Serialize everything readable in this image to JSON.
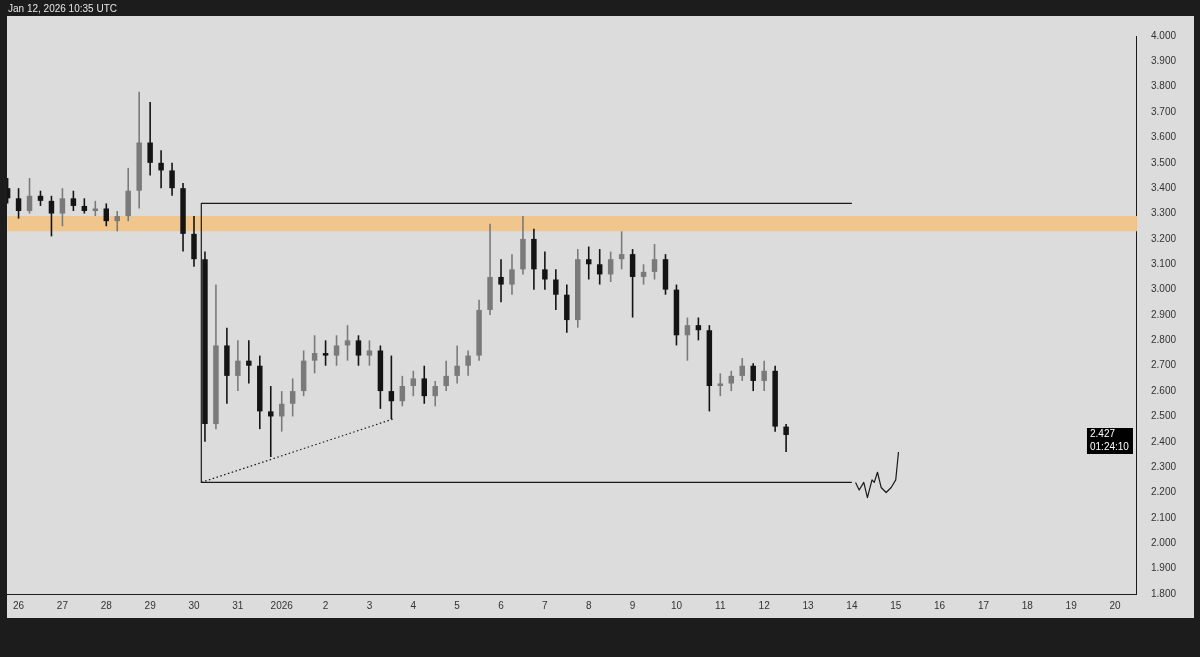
{
  "chart_data": {
    "type": "candlestick",
    "x": [
      "2025-12-25T18:00",
      "2025-12-26T00:00",
      "2025-12-26T06:00",
      "2025-12-26T12:00",
      "2025-12-26T18:00",
      "2025-12-27T00:00",
      "2025-12-27T06:00",
      "2025-12-27T12:00",
      "2025-12-27T18:00",
      "2025-12-28T00:00",
      "2025-12-28T06:00",
      "2025-12-28T12:00",
      "2025-12-28T18:00",
      "2025-12-29T00:00",
      "2025-12-29T06:00",
      "2025-12-29T12:00",
      "2025-12-29T18:00",
      "2025-12-30T00:00",
      "2025-12-30T06:00",
      "2025-12-30T12:00",
      "2025-12-30T18:00",
      "2025-12-31T00:00",
      "2025-12-31T06:00",
      "2025-12-31T12:00",
      "2025-12-31T18:00",
      "2026-01-01T00:00",
      "2026-01-01T06:00",
      "2026-01-01T12:00",
      "2026-01-01T18:00",
      "2026-01-02T00:00",
      "2026-01-02T06:00",
      "2026-01-02T12:00",
      "2026-01-02T18:00",
      "2026-01-03T00:00",
      "2026-01-03T06:00",
      "2026-01-03T12:00",
      "2026-01-03T18:00",
      "2026-01-04T00:00",
      "2026-01-04T06:00",
      "2026-01-04T12:00",
      "2026-01-04T18:00",
      "2026-01-05T00:00",
      "2026-01-05T06:00",
      "2026-01-05T12:00",
      "2026-01-05T18:00",
      "2026-01-06T00:00",
      "2026-01-06T06:00",
      "2026-01-06T12:00",
      "2026-01-06T18:00",
      "2026-01-07T00:00",
      "2026-01-07T06:00",
      "2026-01-07T12:00",
      "2026-01-07T18:00",
      "2026-01-08T00:00",
      "2026-01-08T06:00",
      "2026-01-08T12:00",
      "2026-01-08T18:00",
      "2026-01-09T00:00",
      "2026-01-09T06:00",
      "2026-01-09T12:00",
      "2026-01-09T18:00",
      "2026-01-10T00:00",
      "2026-01-10T06:00",
      "2026-01-10T12:00",
      "2026-01-10T18:00",
      "2026-01-11T00:00",
      "2026-01-11T06:00",
      "2026-01-11T12:00",
      "2026-01-11T18:00",
      "2026-01-12T00:00",
      "2026-01-12T06:00",
      "2026-01-12T12:00"
    ],
    "ohlc": [
      [
        3.4,
        3.44,
        3.34,
        3.36
      ],
      [
        3.36,
        3.4,
        3.28,
        3.31
      ],
      [
        3.31,
        3.44,
        3.3,
        3.37
      ],
      [
        3.37,
        3.39,
        3.33,
        3.35
      ],
      [
        3.35,
        3.37,
        3.21,
        3.3
      ],
      [
        3.3,
        3.4,
        3.25,
        3.36
      ],
      [
        3.36,
        3.39,
        3.31,
        3.33
      ],
      [
        3.33,
        3.36,
        3.3,
        3.31
      ],
      [
        3.31,
        3.35,
        3.29,
        3.32
      ],
      [
        3.32,
        3.34,
        3.25,
        3.27
      ],
      [
        3.27,
        3.31,
        3.23,
        3.29
      ],
      [
        3.29,
        3.48,
        3.27,
        3.39
      ],
      [
        3.39,
        3.78,
        3.32,
        3.58
      ],
      [
        3.58,
        3.74,
        3.45,
        3.5
      ],
      [
        3.5,
        3.55,
        3.4,
        3.47
      ],
      [
        3.47,
        3.5,
        3.37,
        3.4
      ],
      [
        3.4,
        3.42,
        3.15,
        3.22
      ],
      [
        3.22,
        3.29,
        3.09,
        3.12
      ],
      [
        3.12,
        3.15,
        2.4,
        2.47
      ],
      [
        2.47,
        3.02,
        2.45,
        2.78
      ],
      [
        2.78,
        2.85,
        2.55,
        2.66
      ],
      [
        2.66,
        2.8,
        2.6,
        2.72
      ],
      [
        2.72,
        2.8,
        2.63,
        2.7
      ],
      [
        2.7,
        2.74,
        2.45,
        2.52
      ],
      [
        2.52,
        2.62,
        2.34,
        2.5
      ],
      [
        2.5,
        2.6,
        2.44,
        2.55
      ],
      [
        2.55,
        2.65,
        2.5,
        2.6
      ],
      [
        2.6,
        2.76,
        2.58,
        2.72
      ],
      [
        2.72,
        2.82,
        2.67,
        2.75
      ],
      [
        2.75,
        2.8,
        2.7,
        2.74
      ],
      [
        2.74,
        2.82,
        2.7,
        2.78
      ],
      [
        2.78,
        2.86,
        2.72,
        2.8
      ],
      [
        2.8,
        2.82,
        2.7,
        2.74
      ],
      [
        2.74,
        2.8,
        2.7,
        2.76
      ],
      [
        2.76,
        2.78,
        2.53,
        2.6
      ],
      [
        2.6,
        2.74,
        2.49,
        2.56
      ],
      [
        2.56,
        2.66,
        2.54,
        2.62
      ],
      [
        2.62,
        2.68,
        2.58,
        2.65
      ],
      [
        2.65,
        2.7,
        2.55,
        2.58
      ],
      [
        2.58,
        2.64,
        2.54,
        2.62
      ],
      [
        2.62,
        2.72,
        2.6,
        2.66
      ],
      [
        2.66,
        2.78,
        2.63,
        2.7
      ],
      [
        2.7,
        2.76,
        2.66,
        2.74
      ],
      [
        2.74,
        2.96,
        2.72,
        2.92
      ],
      [
        2.92,
        3.26,
        2.9,
        3.05
      ],
      [
        3.05,
        3.12,
        2.95,
        3.02
      ],
      [
        3.02,
        3.14,
        2.98,
        3.08
      ],
      [
        3.08,
        3.29,
        3.06,
        3.2
      ],
      [
        3.2,
        3.24,
        3.0,
        3.08
      ],
      [
        3.08,
        3.15,
        3.0,
        3.04
      ],
      [
        3.04,
        3.08,
        2.92,
        2.98
      ],
      [
        2.98,
        3.02,
        2.83,
        2.88
      ],
      [
        2.88,
        3.16,
        2.85,
        3.12
      ],
      [
        3.12,
        3.17,
        3.04,
        3.1
      ],
      [
        3.1,
        3.16,
        3.02,
        3.06
      ],
      [
        3.06,
        3.15,
        3.03,
        3.12
      ],
      [
        3.12,
        3.23,
        3.08,
        3.14
      ],
      [
        3.14,
        3.16,
        2.89,
        3.05
      ],
      [
        3.05,
        3.1,
        3.02,
        3.07
      ],
      [
        3.07,
        3.18,
        3.04,
        3.12
      ],
      [
        3.12,
        3.14,
        2.98,
        3.0
      ],
      [
        3.0,
        3.02,
        2.78,
        2.82
      ],
      [
        2.82,
        2.89,
        2.72,
        2.86
      ],
      [
        2.86,
        2.89,
        2.8,
        2.84
      ],
      [
        2.84,
        2.86,
        2.52,
        2.62
      ],
      [
        2.62,
        2.67,
        2.58,
        2.63
      ],
      [
        2.63,
        2.68,
        2.6,
        2.66
      ],
      [
        2.66,
        2.73,
        2.64,
        2.7
      ],
      [
        2.7,
        2.71,
        2.6,
        2.64
      ],
      [
        2.64,
        2.72,
        2.6,
        2.68
      ],
      [
        2.68,
        2.7,
        2.44,
        2.46
      ],
      [
        2.46,
        2.47,
        2.36,
        2.427
      ]
    ],
    "series": [
      {
        "type": "line",
        "color": "#1a1a1a",
        "x": [
          "2026-01-14T00:00",
          "2025-12-30T04:00",
          "2025-12-30T04:00",
          "2026-01-14T00:00"
        ],
        "values": [
          3.34,
          3.34,
          2.24,
          2.24
        ]
      },
      {
        "type": "line",
        "color": "#1a1a1a",
        "line_style": "dotted",
        "x": [
          "2025-12-30T04:00",
          "2026-01-03T13:00"
        ],
        "values": [
          2.24,
          2.49
        ]
      },
      {
        "type": "line",
        "color": "#1a1a1a",
        "x": [
          "2026-01-14T02:00",
          "2026-01-14T04:00",
          "2026-01-14T06:30",
          "2026-01-14T08:30",
          "2026-01-14T11:00",
          "2026-01-14T12:15",
          "2026-01-14T14:00",
          "2026-01-14T16:00",
          "2026-01-14T18:45",
          "2026-01-14T21:30",
          "2026-01-15T00:00",
          "2026-01-15T01:30"
        ],
        "values": [
          2.24,
          2.21,
          2.24,
          2.18,
          2.25,
          2.24,
          2.28,
          2.22,
          2.2,
          2.22,
          2.25,
          2.36
        ]
      }
    ],
    "bands": [
      {
        "axis": "y",
        "from": 3.23,
        "to": 3.29,
        "color": "#f0c68c"
      }
    ],
    "xlim": [
      "2025-12-25T18:00",
      "2026-01-20T12:00"
    ],
    "xticks": [
      {
        "value": "2025-12-26",
        "label": "26"
      },
      {
        "value": "2025-12-27",
        "label": "27"
      },
      {
        "value": "2025-12-28",
        "label": "28"
      },
      {
        "value": "2025-12-29",
        "label": "29"
      },
      {
        "value": "2025-12-30",
        "label": "30"
      },
      {
        "value": "2025-12-31",
        "label": "31"
      },
      {
        "value": "2026-01-01",
        "label": "2026"
      },
      {
        "value": "2026-01-02",
        "label": "2"
      },
      {
        "value": "2026-01-03",
        "label": "3"
      },
      {
        "value": "2026-01-04",
        "label": "4"
      },
      {
        "value": "2026-01-05",
        "label": "5"
      },
      {
        "value": "2026-01-06",
        "label": "6"
      },
      {
        "value": "2026-01-07",
        "label": "7"
      },
      {
        "value": "2026-01-08",
        "label": "8"
      },
      {
        "value": "2026-01-09",
        "label": "9"
      },
      {
        "value": "2026-01-10",
        "label": "10"
      },
      {
        "value": "2026-01-11",
        "label": "11"
      },
      {
        "value": "2026-01-12",
        "label": "12"
      },
      {
        "value": "2026-01-13",
        "label": "13"
      },
      {
        "value": "2026-01-14",
        "label": "14"
      },
      {
        "value": "2026-01-15",
        "label": "15"
      },
      {
        "value": "2026-01-16",
        "label": "16"
      },
      {
        "value": "2026-01-17",
        "label": "17"
      },
      {
        "value": "2026-01-18",
        "label": "18"
      },
      {
        "value": "2026-01-19",
        "label": "19"
      },
      {
        "value": "2026-01-20",
        "label": "20"
      }
    ],
    "ylim": [
      1.8,
      4.0
    ],
    "yticks": [
      {
        "value": 1.8,
        "label": "1.800"
      },
      {
        "value": 1.9,
        "label": "1.900"
      },
      {
        "value": 2.0,
        "label": "2.000"
      },
      {
        "value": 2.1,
        "label": "2.100"
      },
      {
        "value": 2.2,
        "label": "2.200"
      },
      {
        "value": 2.3,
        "label": "2.300"
      },
      {
        "value": 2.4,
        "label": "2.400"
      },
      {
        "value": 2.5,
        "label": "2.500"
      },
      {
        "value": 2.6,
        "label": "2.600"
      },
      {
        "value": 2.7,
        "label": "2.700"
      },
      {
        "value": 2.8,
        "label": "2.800"
      },
      {
        "value": 2.9,
        "label": "2.900"
      },
      {
        "value": 3.0,
        "label": "3.000"
      },
      {
        "value": 3.1,
        "label": "3.100"
      },
      {
        "value": 3.2,
        "label": "3.200"
      },
      {
        "value": 3.3,
        "label": "3.300"
      },
      {
        "value": 3.4,
        "label": "3.400"
      },
      {
        "value": 3.5,
        "label": "3.500"
      },
      {
        "value": 3.6,
        "label": "3.600"
      },
      {
        "value": 3.7,
        "label": "3.700"
      },
      {
        "value": 3.8,
        "label": "3.800"
      },
      {
        "value": 3.9,
        "label": "3.900"
      },
      {
        "value": 4.0,
        "label": "4.000"
      }
    ],
    "annotations": [
      "2.427",
      "01:24:10",
      "Jan 12, 2026 10:35 UTC"
    ]
  }
}
